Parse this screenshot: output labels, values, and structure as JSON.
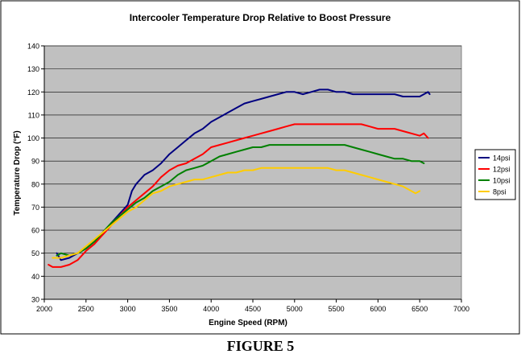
{
  "chart_data": {
    "type": "line",
    "title": "Intercooler Temperature Drop Relative to Boost Pressure",
    "xlabel": "Engine Speed (RPM)",
    "ylabel": "Temperature Drop (°F)",
    "xlim": [
      2000,
      7000
    ],
    "ylim": [
      30,
      140
    ],
    "xticks": [
      2000,
      2500,
      3000,
      3500,
      4000,
      4500,
      5000,
      5500,
      6000,
      6500,
      7000
    ],
    "yticks": [
      30,
      40,
      50,
      60,
      70,
      80,
      90,
      100,
      110,
      120,
      130,
      140
    ],
    "grid": "horizontal",
    "plot_background": "#c0c0c0",
    "legend_position": "right",
    "series": [
      {
        "name": "14psi",
        "color": "#000080",
        "x": [
          2150,
          2200,
          2300,
          2400,
          2500,
          2600,
          2700,
          2800,
          2900,
          3000,
          3050,
          3100,
          3200,
          3300,
          3400,
          3500,
          3600,
          3700,
          3800,
          3900,
          4000,
          4100,
          4200,
          4300,
          4400,
          4500,
          4600,
          4700,
          4800,
          4900,
          5000,
          5100,
          5200,
          5300,
          5400,
          5500,
          5600,
          5700,
          5800,
          5900,
          6000,
          6100,
          6200,
          6300,
          6400,
          6500,
          6550,
          6600,
          6620
        ],
        "y": [
          50,
          47,
          48,
          50,
          52,
          55,
          59,
          63,
          67,
          71,
          77,
          80,
          84,
          86,
          89,
          93,
          96,
          99,
          102,
          104,
          107,
          109,
          111,
          113,
          115,
          116,
          117,
          118,
          119,
          120,
          120,
          119,
          120,
          121,
          121,
          120,
          120,
          119,
          119,
          119,
          119,
          119,
          119,
          118,
          118,
          118,
          119,
          120,
          119
        ]
      },
      {
        "name": "12psi",
        "color": "#ff0000",
        "x": [
          2050,
          2100,
          2200,
          2300,
          2400,
          2500,
          2600,
          2700,
          2800,
          2900,
          3000,
          3100,
          3200,
          3300,
          3400,
          3500,
          3600,
          3700,
          3800,
          3900,
          4000,
          4100,
          4200,
          4300,
          4400,
          4500,
          4600,
          4700,
          4800,
          4900,
          5000,
          5100,
          5200,
          5300,
          5400,
          5500,
          5600,
          5700,
          5800,
          5900,
          6000,
          6100,
          6200,
          6300,
          6400,
          6500,
          6550,
          6600
        ],
        "y": [
          45,
          44,
          44,
          45,
          47,
          51,
          54,
          58,
          62,
          66,
          70,
          73,
          76,
          79,
          83,
          86,
          88,
          89,
          91,
          93,
          96,
          97,
          98,
          99,
          100,
          101,
          102,
          103,
          104,
          105,
          106,
          106,
          106,
          106,
          106,
          106,
          106,
          106,
          106,
          105,
          104,
          104,
          104,
          103,
          102,
          101,
          102,
          100
        ]
      },
      {
        "name": "10psi",
        "color": "#008000",
        "x": [
          2150,
          2200,
          2300,
          2400,
          2500,
          2600,
          2700,
          2800,
          2900,
          3000,
          3100,
          3200,
          3300,
          3400,
          3500,
          3600,
          3700,
          3800,
          3900,
          4000,
          4100,
          4200,
          4300,
          4400,
          4500,
          4600,
          4700,
          4800,
          4900,
          5000,
          5100,
          5200,
          5300,
          5400,
          5500,
          5600,
          5700,
          5800,
          5900,
          6000,
          6100,
          6200,
          6300,
          6400,
          6500,
          6550
        ],
        "y": [
          49,
          50,
          49,
          50,
          52,
          55,
          59,
          63,
          66,
          69,
          72,
          74,
          77,
          79,
          81,
          84,
          86,
          87,
          88,
          90,
          92,
          93,
          94,
          95,
          96,
          96,
          97,
          97,
          97,
          97,
          97,
          97,
          97,
          97,
          97,
          97,
          96,
          95,
          94,
          93,
          92,
          91,
          91,
          90,
          90,
          89
        ]
      },
      {
        "name": "8psi",
        "color": "#ffcc00",
        "x": [
          2100,
          2200,
          2300,
          2400,
          2500,
          2600,
          2700,
          2800,
          2900,
          3000,
          3100,
          3200,
          3300,
          3400,
          3500,
          3600,
          3700,
          3800,
          3900,
          4000,
          4100,
          4200,
          4300,
          4400,
          4500,
          4600,
          4700,
          4800,
          4900,
          5000,
          5100,
          5200,
          5300,
          5400,
          5500,
          5600,
          5700,
          5800,
          5900,
          6000,
          6100,
          6200,
          6300,
          6400,
          6450,
          6500
        ],
        "y": [
          48,
          48,
          49,
          50,
          53,
          56,
          59,
          62,
          65,
          68,
          70,
          73,
          76,
          77,
          79,
          80,
          81,
          82,
          82,
          83,
          84,
          85,
          85,
          86,
          86,
          87,
          87,
          87,
          87,
          87,
          87,
          87,
          87,
          87,
          86,
          86,
          85,
          84,
          83,
          82,
          81,
          80,
          79,
          77,
          76,
          77
        ]
      }
    ]
  },
  "caption": "FIGURE 5"
}
